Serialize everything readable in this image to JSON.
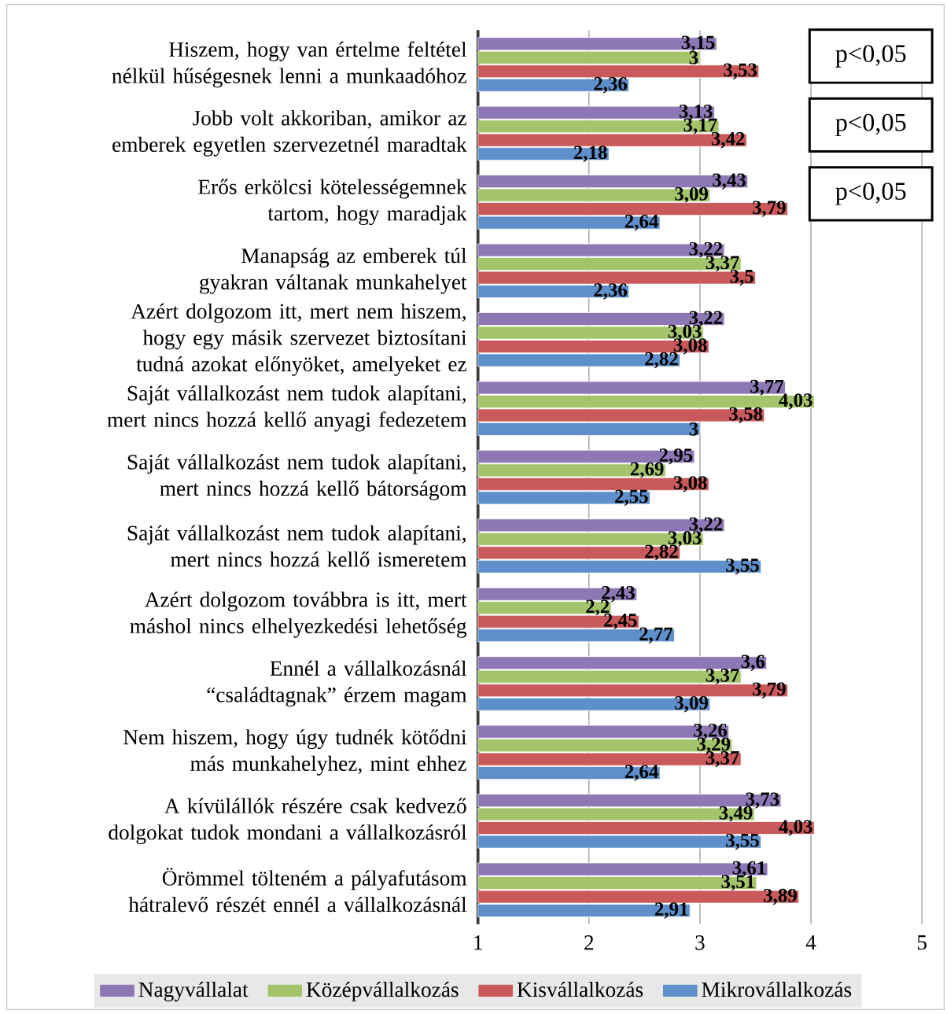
{
  "chart_data": {
    "type": "bar",
    "orientation": "horizontal",
    "categories": [
      "Hiszem, hogy van értelme feltétel nélkül hűségesnek lenni a munkaadóhoz",
      "Jobb volt akkoriban, amikor az emberek egyetlen szervezetnél maradtak",
      "Erős erkölcsi kötelességemnek tartom, hogy maradjak",
      "Manapság az emberek túl gyakran váltanak munkahelyet",
      "Azért dolgozom itt, mert nem hiszem, hogy egy másik szervezet biztosítani tudná azokat előnyöket, amelyeket ez",
      "Saját vállalkozást nem tudok alapítani, mert nincs hozzá kellő anyagi fedezetem",
      "Saját vállalkozást nem tudok alapítani, mert nincs hozzá kellő bátorságom",
      "Saját vállalkozást nem tudok alapítani, mert nincs hozzá kellő ismeretem",
      "Azért dolgozom továbbra is itt, mert máshol nincs elhelyezkedési lehetőség",
      "Ennél a vállalkozásnál “családtagnak” érzem magam",
      "Nem hiszem, hogy úgy tudnék kötődni más munkahelyhez, mint ehhez",
      "A kívülállók részére csak kedvező dolgokat tudok mondani a vállalkozásról",
      "Örömmel tölteném a pályafutásom hátralevő részét ennél a vállalkozásnál"
    ],
    "series": [
      {
        "name": "Nagyvállalat",
        "color": "#8d78b5",
        "values": [
          3.15,
          3.13,
          3.43,
          3.22,
          3.22,
          3.77,
          2.95,
          3.22,
          2.43,
          3.6,
          3.26,
          3.73,
          3.61
        ],
        "value_labels": [
          "3,15",
          "3,13",
          "3,43",
          "3,22",
          "3,22",
          "3,77",
          "2,95",
          "3,22",
          "2,43",
          "3,6",
          "3,26",
          "3,73",
          "3,61"
        ]
      },
      {
        "name": "Középvállalkozás",
        "color": "#a3c46a",
        "values": [
          3,
          3.17,
          3.09,
          3.37,
          3.03,
          4.03,
          2.69,
          3.03,
          2.2,
          3.37,
          3.29,
          3.49,
          3.51
        ],
        "value_labels": [
          "3",
          "3,17",
          "3,09",
          "3,37",
          "3,03",
          "4,03",
          "2,69",
          "3,03",
          "2,2",
          "3,37",
          "3,29",
          "3,49",
          "3,51"
        ]
      },
      {
        "name": "Kisvállalkozás",
        "color": "#c9595a",
        "values": [
          3.53,
          3.42,
          3.79,
          3.5,
          3.08,
          3.58,
          3.08,
          2.82,
          2.45,
          3.79,
          3.37,
          4.03,
          3.89
        ],
        "value_labels": [
          "3,53",
          "3,42",
          "3,79",
          "3,5",
          "3,08",
          "3,58",
          "3,08",
          "2,82",
          "2,45",
          "3,79",
          "3,37",
          "4,03",
          "3,89"
        ]
      },
      {
        "name": "Mikrovállalkozás",
        "color": "#5e8fca",
        "values": [
          2.36,
          2.18,
          2.64,
          2.36,
          2.82,
          3,
          2.55,
          3.55,
          2.77,
          3.09,
          2.64,
          3.55,
          2.91
        ],
        "value_labels": [
          "2,36",
          "2,18",
          "2,64",
          "2,36",
          "2,82",
          "3",
          "2,55",
          "3,55",
          "2,77",
          "3,09",
          "2,64",
          "3,55",
          "2,91"
        ]
      }
    ],
    "xlim": [
      1,
      5
    ],
    "xticks": [
      1,
      2,
      3,
      4,
      5
    ],
    "grid": "x",
    "legend": "bottom",
    "annotations": [
      "p<0,05",
      "p<0,05",
      "p<0,05"
    ]
  }
}
